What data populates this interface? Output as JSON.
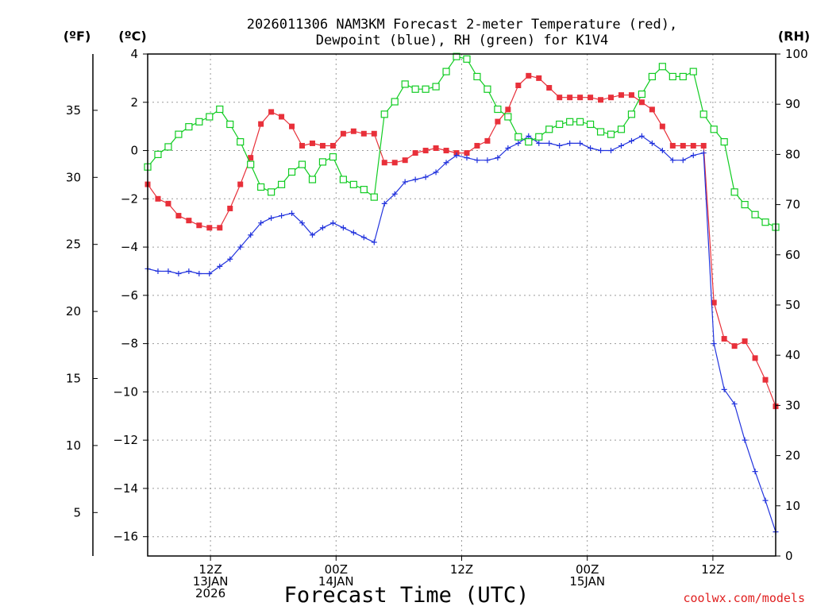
{
  "chart_data": {
    "type": "line",
    "title_line1": "2026011306 NAM3KM Forecast 2-meter Temperature (red),",
    "title_line2": "Dewpoint (blue), RH (green) for K1V4",
    "xlabel": "Forecast Time (UTC)",
    "credit": "coolwx.com/models",
    "units": {
      "left_f": "(ºF)",
      "left_c": "(ºC)",
      "right_rh": "(RH)"
    },
    "colors": {
      "temperature": "#e8303a",
      "dewpoint": "#2233dd",
      "rh": "#11cc22"
    },
    "x_range_hours": [
      0,
      60
    ],
    "x_ticks": [
      {
        "hour": 6,
        "line1": "12Z",
        "line2": "13JAN",
        "line3": "2026"
      },
      {
        "hour": 18,
        "line1": "00Z",
        "line2": "14JAN",
        "line3": ""
      },
      {
        "hour": 30,
        "line1": "12Z",
        "line2": "",
        "line3": ""
      },
      {
        "hour": 42,
        "line1": "00Z",
        "line2": "15JAN",
        "line3": ""
      },
      {
        "hour": 54,
        "line1": "12Z",
        "line2": "",
        "line3": ""
      }
    ],
    "y_celsius": {
      "range": [
        -16.8,
        4
      ],
      "ticks": [
        "4",
        "2",
        "0",
        "−2",
        "−4",
        "−6",
        "−8",
        "−10",
        "−12",
        "−14",
        "−16"
      ],
      "tick_values": [
        4,
        2,
        0,
        -2,
        -4,
        -6,
        -8,
        -10,
        -12,
        -14,
        -16
      ]
    },
    "y_fahrenheit": {
      "ticks": [
        "35",
        "30",
        "25",
        "20",
        "15",
        "10",
        "5"
      ],
      "tick_values": [
        35,
        30,
        25,
        20,
        15,
        10,
        5
      ]
    },
    "y_rh": {
      "range": [
        0,
        100
      ],
      "ticks": [
        "100",
        "90",
        "80",
        "70",
        "60",
        "50",
        "40",
        "30",
        "20",
        "10",
        "0"
      ],
      "tick_values": [
        100,
        90,
        80,
        70,
        60,
        50,
        40,
        30,
        20,
        10,
        0
      ]
    },
    "series": [
      {
        "name": "Temperature",
        "units": "C",
        "values": [
          -1.4,
          -2.0,
          -2.2,
          -2.7,
          -2.9,
          -3.1,
          -3.2,
          -3.2,
          -2.4,
          -1.4,
          -0.3,
          1.1,
          1.6,
          1.4,
          1.0,
          0.2,
          0.3,
          0.2,
          0.2,
          0.7,
          0.8,
          0.7,
          0.7,
          -0.5,
          -0.5,
          -0.4,
          -0.1,
          0.0,
          0.1,
          0.0,
          -0.1,
          -0.1,
          0.2,
          0.4,
          1.2,
          1.7,
          2.7,
          3.1,
          3.0,
          2.6,
          2.2,
          2.2,
          2.2,
          2.2,
          2.1,
          2.2,
          2.3,
          2.3,
          2.0,
          1.7,
          1.0,
          0.2,
          0.2,
          0.2,
          0.2,
          -6.3,
          -7.8,
          -8.1,
          -7.9,
          -8.6,
          -9.5,
          -10.6
        ]
      },
      {
        "name": "Dewpoint",
        "units": "C",
        "values": [
          -4.9,
          -5.0,
          -5.0,
          -5.1,
          -5.0,
          -5.1,
          -5.1,
          -4.8,
          -4.5,
          -4.0,
          -3.5,
          -3.0,
          -2.8,
          -2.7,
          -2.6,
          -3.0,
          -3.5,
          -3.2,
          -3.0,
          -3.2,
          -3.4,
          -3.6,
          -3.8,
          -2.2,
          -1.8,
          -1.3,
          -1.2,
          -1.1,
          -0.9,
          -0.5,
          -0.2,
          -0.3,
          -0.4,
          -0.4,
          -0.3,
          0.1,
          0.3,
          0.6,
          0.3,
          0.3,
          0.2,
          0.3,
          0.3,
          0.1,
          0.0,
          0.0,
          0.2,
          0.4,
          0.6,
          0.3,
          0.0,
          -0.4,
          -0.4,
          -0.2,
          -0.1,
          -8.0,
          -9.9,
          -10.5,
          -12.0,
          -13.3,
          -14.5,
          -15.8
        ]
      },
      {
        "name": "RH",
        "units": "%",
        "values": [
          77.5,
          80,
          81.5,
          84,
          85.5,
          86.5,
          87.5,
          89,
          86,
          82.5,
          78,
          73.5,
          72.5,
          74,
          76.5,
          78,
          75,
          78.5,
          79.5,
          75,
          74,
          73,
          71.5,
          88,
          90.5,
          94,
          93,
          93,
          93.5,
          96.5,
          99.5,
          99,
          95.5,
          93,
          89,
          87.5,
          83.5,
          82.5,
          83.5,
          85,
          86,
          86.5,
          86.5,
          86,
          84.5,
          84,
          85,
          88,
          92,
          95.5,
          97.5,
          95.5,
          95.5,
          96.5,
          88,
          85,
          82.5,
          72.5,
          70,
          68,
          66.5,
          65.5
        ]
      }
    ]
  }
}
